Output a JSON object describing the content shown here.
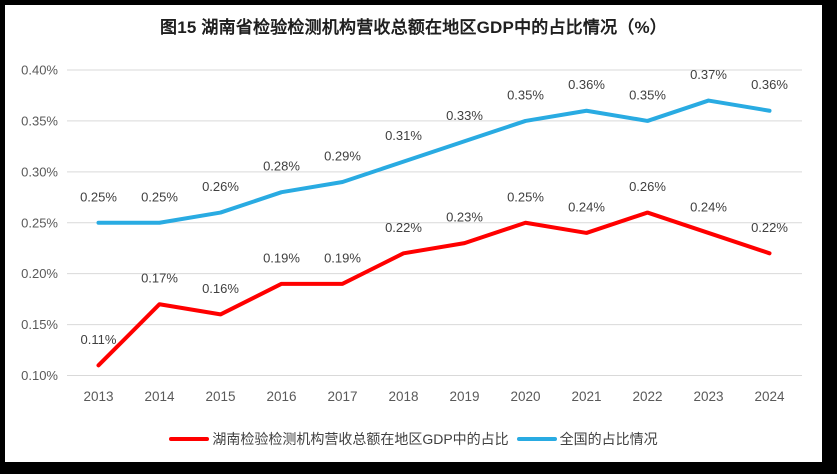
{
  "window": {
    "frame_color": "#000000",
    "chart_background": "#ffffff"
  },
  "chart_data": {
    "type": "line",
    "title": "图15 湖南省检验检测机构营收总额在地区GDP中的占比情况（%）",
    "categories": [
      "2013",
      "2014",
      "2015",
      "2016",
      "2017",
      "2018",
      "2019",
      "2020",
      "2021",
      "2022",
      "2023",
      "2024"
    ],
    "series": [
      {
        "name": "湖南检验检测机构营收总额在地区GDP中的占比",
        "color": "#FF0000",
        "values": [
          0.11,
          0.17,
          0.16,
          0.19,
          0.19,
          0.22,
          0.23,
          0.25,
          0.24,
          0.26,
          0.24,
          0.22
        ],
        "labels": [
          "0.11%",
          "0.17%",
          "0.16%",
          "0.19%",
          "0.19%",
          "0.22%",
          "0.23%",
          "0.25%",
          "0.24%",
          "0.26%",
          "0.24%",
          "0.22%"
        ]
      },
      {
        "name": "全国的占比情况",
        "color": "#29ABE2",
        "values": [
          0.25,
          0.25,
          0.26,
          0.28,
          0.29,
          0.31,
          0.33,
          0.35,
          0.36,
          0.35,
          0.37,
          0.36
        ],
        "labels": [
          "0.25%",
          "0.25%",
          "0.26%",
          "0.28%",
          "0.29%",
          "0.31%",
          "0.33%",
          "0.35%",
          "0.36%",
          "0.35%",
          "0.37%",
          "0.36%"
        ]
      }
    ],
    "xlabel": "",
    "ylabel": "",
    "ylim": [
      0.1,
      0.4
    ],
    "y_ticks": [
      {
        "value": 0.4,
        "label": "0.40%"
      },
      {
        "value": 0.35,
        "label": "0.35%"
      },
      {
        "value": 0.3,
        "label": "0.30%"
      },
      {
        "value": 0.25,
        "label": "0.25%"
      },
      {
        "value": 0.2,
        "label": "0.20%"
      },
      {
        "value": 0.15,
        "label": "0.15%"
      },
      {
        "value": 0.1,
        "label": "0.10%"
      }
    ],
    "grid": true,
    "legend_position": "bottom",
    "gridline_color": "#D9D9D9",
    "axis_text_color": "#595959",
    "data_label_color": "#404040"
  }
}
